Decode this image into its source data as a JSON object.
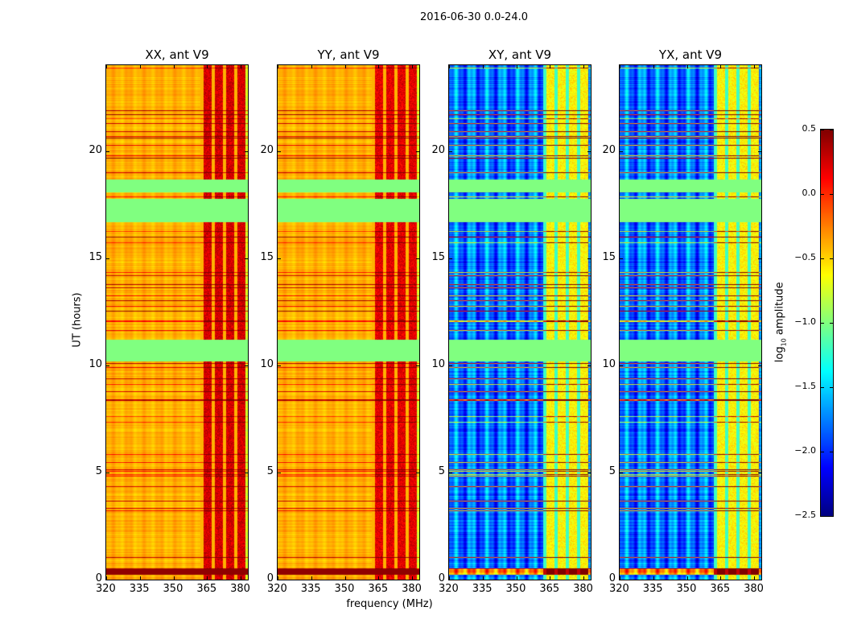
{
  "chart_data": {
    "type": "heatmap",
    "title": "2016-06-30 0.0-24.0",
    "xlabel": "frequency (MHz)",
    "ylabel": "UT (hours)",
    "xlim": [
      320,
      383.2
    ],
    "ylim": [
      0,
      24
    ],
    "xticks": [
      "320",
      "335",
      "350",
      "365",
      "380"
    ],
    "xtick_values": [
      320,
      335,
      350,
      365,
      380
    ],
    "yticks": [
      "0",
      "5",
      "10",
      "15",
      "20"
    ],
    "ytick_values": [
      0,
      5,
      10,
      15,
      20
    ],
    "colorbar": {
      "label_prefix": "log",
      "label_sub": "10",
      "label_suffix": " amplitude",
      "colormap": "jet",
      "range": [
        -2.5,
        0.5
      ],
      "ticks": [
        "0.5",
        "0.0",
        "−0.5",
        "−1.0",
        "−1.5",
        "−2.0",
        "−2.5"
      ],
      "tick_values": [
        0.5,
        0.0,
        -0.5,
        -1.0,
        -1.5,
        -2.0,
        -2.5
      ]
    },
    "panels": [
      {
        "title": "XX, ant V9",
        "base_level": -0.4,
        "rfi_level": 0.25,
        "stripe_depth": 0.1
      },
      {
        "title": "YY, ant V9",
        "base_level": -0.4,
        "rfi_level": 0.2,
        "stripe_depth": 0.1
      },
      {
        "title": "XY, ant V9",
        "base_level": -1.8,
        "rfi_level": -0.6,
        "stripe_depth": 0.5
      },
      {
        "title": "YX, ant V9",
        "base_level": -1.8,
        "rfi_level": -0.6,
        "stripe_depth": 0.5
      }
    ],
    "rfi_band_mhz": [
      362,
      382
    ],
    "flagged_intervals_hours": [
      [
        10.2,
        11.2
      ],
      [
        16.7,
        17.8
      ],
      [
        18.1,
        18.7
      ]
    ],
    "flagged_fill_value": -1.0
  }
}
